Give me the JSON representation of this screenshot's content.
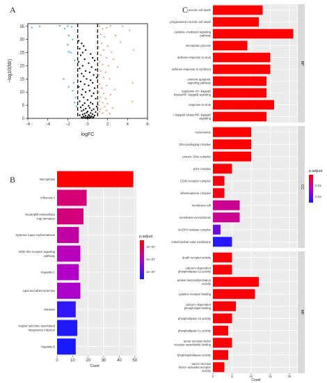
{
  "colors": {
    "up": "#f4a582",
    "down": "#4cb8dc",
    "ns": "#111111",
    "grad_low": "#ff0000",
    "grad_mid": "#b400c8",
    "grad_high": "#1a1aff",
    "panel_bg": "#ebebeb",
    "strip": "#d9d9d9"
  },
  "panel_labels": {
    "a": "A",
    "b": "B",
    "c": "C"
  },
  "chart_data": [
    {
      "type": "scatter",
      "xlabel": "logFC",
      "ylabel": "−log10(fdr)",
      "xlim": [
        -6,
        6
      ],
      "ylim": [
        0,
        36
      ],
      "xticks": [
        "−6",
        "−4",
        "−2",
        "0",
        "2",
        "4",
        "6"
      ],
      "yticks": [
        "0",
        "5",
        "10",
        "15",
        "20",
        "25",
        "30",
        "35"
      ],
      "threshold_x": [
        -1,
        1
      ],
      "series": [
        {
          "group": "down",
          "points": [
            [
              -5.6,
              34.5
            ],
            [
              -4.8,
              35.0
            ],
            [
              -2.8,
              35.2
            ],
            [
              -2.3,
              34.2
            ],
            [
              -2.0,
              35.0
            ],
            [
              -1.6,
              34.8
            ],
            [
              -1.9,
              31.5
            ],
            [
              -1.5,
              30.0
            ],
            [
              -2.0,
              28.0
            ],
            [
              -1.9,
              25.3
            ],
            [
              -1.7,
              25.0
            ],
            [
              -1.3,
              22.0
            ],
            [
              -2.4,
              15.0
            ],
            [
              -1.4,
              13.5
            ],
            [
              -1.9,
              12.0
            ],
            [
              -1.5,
              10.5
            ],
            [
              -1.2,
              8.0
            ],
            [
              -1.3,
              6.0
            ],
            [
              -1.1,
              4.5
            ]
          ]
        },
        {
          "group": "up",
          "points": [
            [
              1.2,
              35.0
            ],
            [
              1.5,
              34.0
            ],
            [
              1.9,
              34.5
            ],
            [
              2.3,
              35.2
            ],
            [
              3.5,
              35.0
            ],
            [
              4.2,
              33.5
            ],
            [
              1.3,
              32.0
            ],
            [
              1.7,
              31.0
            ],
            [
              2.8,
              31.5
            ],
            [
              3.3,
              29.0
            ],
            [
              1.4,
              28.5
            ],
            [
              2.0,
              27.5
            ],
            [
              1.1,
              27.0
            ],
            [
              1.6,
              26.0
            ],
            [
              2.4,
              25.2
            ],
            [
              4.6,
              26.0
            ],
            [
              1.3,
              24.0
            ],
            [
              1.9,
              23.0
            ],
            [
              2.6,
              22.5
            ],
            [
              1.2,
              21.5
            ],
            [
              1.5,
              20.5
            ],
            [
              2.1,
              20.0
            ],
            [
              3.0,
              19.5
            ],
            [
              1.3,
              18.0
            ],
            [
              1.8,
              17.5
            ],
            [
              1.1,
              16.5
            ],
            [
              1.6,
              15.5
            ],
            [
              2.2,
              15.0
            ],
            [
              4.5,
              13.5
            ],
            [
              1.2,
              13.0
            ],
            [
              1.9,
              12.5
            ],
            [
              1.4,
              11.5
            ],
            [
              2.7,
              11.0
            ],
            [
              1.1,
              10.0
            ],
            [
              1.6,
              9.5
            ],
            [
              2.3,
              9.0
            ],
            [
              1.3,
              8.0
            ],
            [
              1.8,
              7.5
            ],
            [
              4.5,
              6.5
            ],
            [
              1.2,
              6.5
            ],
            [
              1.5,
              6.0
            ],
            [
              2.0,
              5.5
            ],
            [
              1.1,
              5.0
            ],
            [
              1.7,
              4.5
            ],
            [
              2.5,
              4.0
            ],
            [
              1.3,
              3.5
            ],
            [
              1.9,
              3.0
            ],
            [
              1.2,
              2.5
            ],
            [
              1.5,
              2.0
            ],
            [
              2.2,
              1.8
            ]
          ]
        },
        {
          "group": "ns",
          "points": [
            [
              -0.9,
              29.5
            ],
            [
              -0.6,
              28.5
            ],
            [
              -0.4,
              27.5
            ],
            [
              -0.8,
              26.5
            ],
            [
              -0.2,
              26.0
            ],
            [
              -0.5,
              25.0
            ],
            [
              0.3,
              24.5
            ],
            [
              -0.7,
              24.0
            ],
            [
              0.5,
              23.0
            ],
            [
              -0.3,
              22.5
            ],
            [
              0.7,
              22.0
            ],
            [
              -0.9,
              21.5
            ],
            [
              0.1,
              21.0
            ],
            [
              -0.5,
              20.0
            ],
            [
              0.4,
              19.5
            ],
            [
              -0.8,
              19.0
            ],
            [
              0.8,
              18.5
            ],
            [
              -0.2,
              18.0
            ],
            [
              0.2,
              17.5
            ],
            [
              -0.6,
              17.0
            ],
            [
              0.6,
              16.5
            ],
            [
              -0.4,
              16.0
            ],
            [
              0.9,
              15.5
            ],
            [
              -0.1,
              15.0
            ],
            [
              0.3,
              14.5
            ],
            [
              -0.7,
              14.0
            ],
            [
              0.5,
              13.5
            ],
            [
              -0.3,
              13.0
            ],
            [
              0.1,
              12.5
            ],
            [
              -0.9,
              12.0
            ],
            [
              0.7,
              11.5
            ],
            [
              -0.5,
              11.0
            ],
            [
              0.2,
              10.5
            ],
            [
              -0.2,
              10.0
            ],
            [
              0.6,
              9.5
            ],
            [
              -0.6,
              9.0
            ],
            [
              0.4,
              8.5
            ],
            [
              -0.4,
              8.0
            ],
            [
              0.8,
              7.5
            ],
            [
              0.0,
              7.0
            ],
            [
              -0.8,
              6.5
            ],
            [
              0.3,
              6.0
            ],
            [
              -0.3,
              5.8
            ],
            [
              0.5,
              5.5
            ],
            [
              -0.5,
              5.0
            ],
            [
              0.1,
              4.8
            ],
            [
              0.9,
              4.5
            ],
            [
              -0.7,
              4.2
            ],
            [
              0.2,
              4.0
            ],
            [
              -0.2,
              3.7
            ],
            [
              0.6,
              3.5
            ],
            [
              -0.4,
              3.2
            ],
            [
              0.4,
              3.0
            ],
            [
              -0.6,
              2.8
            ],
            [
              0.0,
              2.6
            ],
            [
              0.8,
              2.4
            ],
            [
              -0.1,
              2.2
            ],
            [
              0.3,
              2.0
            ],
            [
              -0.3,
              1.8
            ],
            [
              0.5,
              1.6
            ],
            [
              -0.5,
              1.5
            ],
            [
              0.1,
              1.3
            ],
            [
              -0.8,
              1.2
            ],
            [
              0.7,
              1.1
            ],
            [
              -0.2,
              1.0
            ],
            [
              0.2,
              0.9
            ],
            [
              0.4,
              0.8
            ],
            [
              -0.4,
              0.7
            ],
            [
              0.0,
              0.6
            ],
            [
              0.6,
              0.5
            ],
            [
              -0.6,
              0.4
            ],
            [
              0.3,
              0.35
            ],
            [
              -0.3,
              0.3
            ],
            [
              0.1,
              0.25
            ],
            [
              -0.1,
              0.2
            ],
            [
              0.5,
              0.15
            ],
            [
              -0.5,
              0.1
            ],
            [
              0.2,
              0.08
            ],
            [
              -0.2,
              0.05
            ],
            [
              0.0,
              0.02
            ]
          ]
        }
      ]
    },
    {
      "type": "bar",
      "orientation": "horizontal",
      "categories": [
        "Necroptosis",
        "Influenza A",
        "Neutrophil extracellular trap formation",
        "Systemic lupus erythematosus",
        "NOD−like receptor signaling pathway",
        "Hepatitis C",
        "Lipid and atherosclerosis",
        "Measles",
        "Kaposi sarcoma−associated herpesvirus infection",
        "Hepatitis B"
      ],
      "category_lines": [
        [
          "Necroptosis"
        ],
        [
          "Influenza A"
        ],
        [
          "Neutrophil extracellular",
          "trap formation"
        ],
        [
          "Systemic lupus erythematosus"
        ],
        [
          "NOD−like receptor signaling",
          "pathway"
        ],
        [
          "Hepatitis C"
        ],
        [
          "Lipid and atherosclerosis"
        ],
        [
          "Measles"
        ],
        [
          "Kaposi sarcoma−associated",
          "herpesvirus infection"
        ],
        [
          "Hepatitis B"
        ]
      ],
      "values": [
        49,
        19,
        17,
        14,
        15,
        14,
        15,
        12,
        13,
        12
      ],
      "p_adjust": [
        1e-13,
        8e-12,
        1e-11,
        5e-11,
        1.2e-10,
        2e-10,
        3e-10,
        1.2e-07,
        2.8e-07,
        3.8e-07
      ],
      "xlabel": "Count",
      "xlim": [
        0,
        51
      ],
      "xticks": [
        0,
        10,
        20,
        30,
        40,
        50
      ],
      "legend": {
        "title": "p.adjust",
        "labels": [
          "1e−07",
          "2e−07",
          "3e−07"
        ],
        "placement": "right"
      }
    },
    {
      "type": "bar",
      "orientation": "horizontal",
      "xlabel": "Count",
      "xlim": [
        0,
        22
      ],
      "xticks": [
        0,
        5,
        10,
        15,
        20
      ],
      "legend": {
        "title": "p.adjust",
        "labels": [
          "0.01",
          "0.02"
        ],
        "placement": "right"
      },
      "facets": [
        {
          "name": "BP",
          "category_lines": [
            [
              "necrotic cell death"
            ],
            [
              "programmed necrotic cell death"
            ],
            [
              "cytokine−mediated signaling",
              "pathway"
            ],
            [
              "necroptotic process"
            ],
            [
              "defense response to virus"
            ],
            [
              "defense response to symbiont"
            ],
            [
              "extrinsic apoptotic",
              "signaling pathway"
            ],
            [
              "regulation of I−kappaB",
              "kinase/NF−kappaB signaling"
            ],
            [
              "response to virus"
            ],
            [
              "I−kappaB kinase/NF−kappaB",
              "signaling"
            ]
          ],
          "values": [
            13,
            12,
            21,
            9,
            15,
            15,
            14,
            14,
            16,
            14
          ],
          "p_adjust": [
            1e-09,
            1e-09,
            1e-09,
            1e-09,
            1e-09,
            1e-09,
            1e-09,
            1e-09,
            1e-09,
            1e-09
          ]
        },
        {
          "name": "CC",
          "category_lines": [
            [
              "nucleosome"
            ],
            [
              "DNA packaging complex"
            ],
            [
              "protein−DNA complex"
            ],
            [
              "pore complex"
            ],
            [
              "CD40 receptor complex"
            ],
            [
              "inflammasome complex"
            ],
            [
              "membrane raft"
            ],
            [
              "membrane microdomain"
            ],
            [
              "NADPH oxidase complex"
            ],
            [
              "mitochondrial outer membrane"
            ]
          ],
          "values": [
            10,
            10,
            10,
            5,
            3,
            3,
            7,
            7,
            2,
            5
          ],
          "p_adjust": [
            1e-05,
            1e-05,
            1e-05,
            0.0005,
            0.001,
            0.001,
            0.009,
            0.009,
            0.018,
            0.024
          ]
        },
        {
          "name": "MF",
          "category_lines": [
            [
              "death receptor activity"
            ],
            [
              "calcium−dependent",
              "phospholipase A2 activity"
            ],
            [
              "protein heterodimerization",
              "activity"
            ],
            [
              "cytokine receptor binding"
            ],
            [
              "calcium−dependent",
              "phospholipid binding"
            ],
            [
              "phospholipase A2 activity"
            ],
            [
              "phospholipase A1 activity"
            ],
            [
              "tumor necrosis factor",
              "receptor superfamily binding"
            ],
            [
              "lysophospholipase activity"
            ],
            [
              "tumor necrosis",
              "factor−activated receptor",
              "activity"
            ]
          ],
          "values": [
            5,
            5,
            12,
            11,
            6,
            5,
            4,
            5,
            4,
            3
          ],
          "p_adjust": [
            0.0005,
            0.0005,
            0.0005,
            0.0005,
            0.0005,
            0.0005,
            0.0005,
            0.0005,
            0.0005,
            0.0005
          ]
        }
      ]
    }
  ]
}
